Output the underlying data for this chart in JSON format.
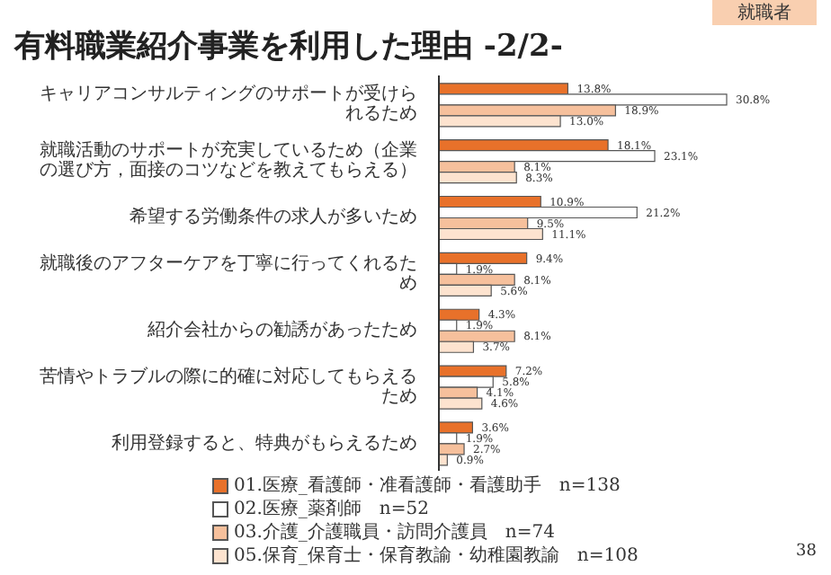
{
  "chart_data": {
    "type": "bar",
    "orientation": "horizontal",
    "title": "有料職業紹介事業を利用した理由 -2/2-",
    "categories": [
      "キャリアコンサルティングのサポートが受けられるため",
      "就職活動のサポートが充実しているため（企業の選び方，面接のコツなどを教えてもらえる）",
      "希望する労働条件の求人が多いため",
      "就職後のアフターケアを丁寧に行ってくれるため",
      "紹介会社からの勧誘があったため",
      "苦情やトラブルの際に的確に対応してもらえるため",
      "利用登録すると、特典がもらえるため"
    ],
    "series": [
      {
        "name": "01.医療_看護師・准看護師・看護助手　n=138",
        "color": "#e8712a",
        "values": [
          13.8,
          18.1,
          10.9,
          9.4,
          4.3,
          7.2,
          3.6
        ],
        "value_labels": [
          "13.8%",
          "18.1%",
          "10.9%",
          "9.4%",
          "4.3%",
          "7.2%",
          "3.6%"
        ]
      },
      {
        "name": "02.医療_薬剤師　n=52",
        "color": "#ffffff",
        "values": [
          30.8,
          23.1,
          21.2,
          1.9,
          1.9,
          5.8,
          1.9
        ],
        "value_labels": [
          "30.8%",
          "23.1%",
          "21.2%",
          "1.9%",
          "1.9%",
          "5.8%",
          "1.9%"
        ]
      },
      {
        "name": "03.介護_介護職員・訪問介護員　n=74",
        "color": "#f6c09c",
        "values": [
          18.9,
          8.1,
          9.5,
          8.1,
          8.1,
          4.1,
          2.7
        ],
        "value_labels": [
          "18.9%",
          "8.1%",
          "9.5%",
          "8.1%",
          "8.1%",
          "4.1%",
          "2.7%"
        ]
      },
      {
        "name": "05.保育_保育士・保育教諭・幼稚園教諭　n=108",
        "color": "#fde3cf",
        "values": [
          13.0,
          8.3,
          11.1,
          5.6,
          3.7,
          4.6,
          0.9
        ],
        "value_labels": [
          "13.0%",
          "8.3%",
          "11.1%",
          "5.6%",
          "3.7%",
          "4.6%",
          "0.9%"
        ]
      }
    ],
    "annotations": [
      "就職者",
      "38"
    ],
    "tick_labels": "y",
    "legend": "bottom"
  }
}
